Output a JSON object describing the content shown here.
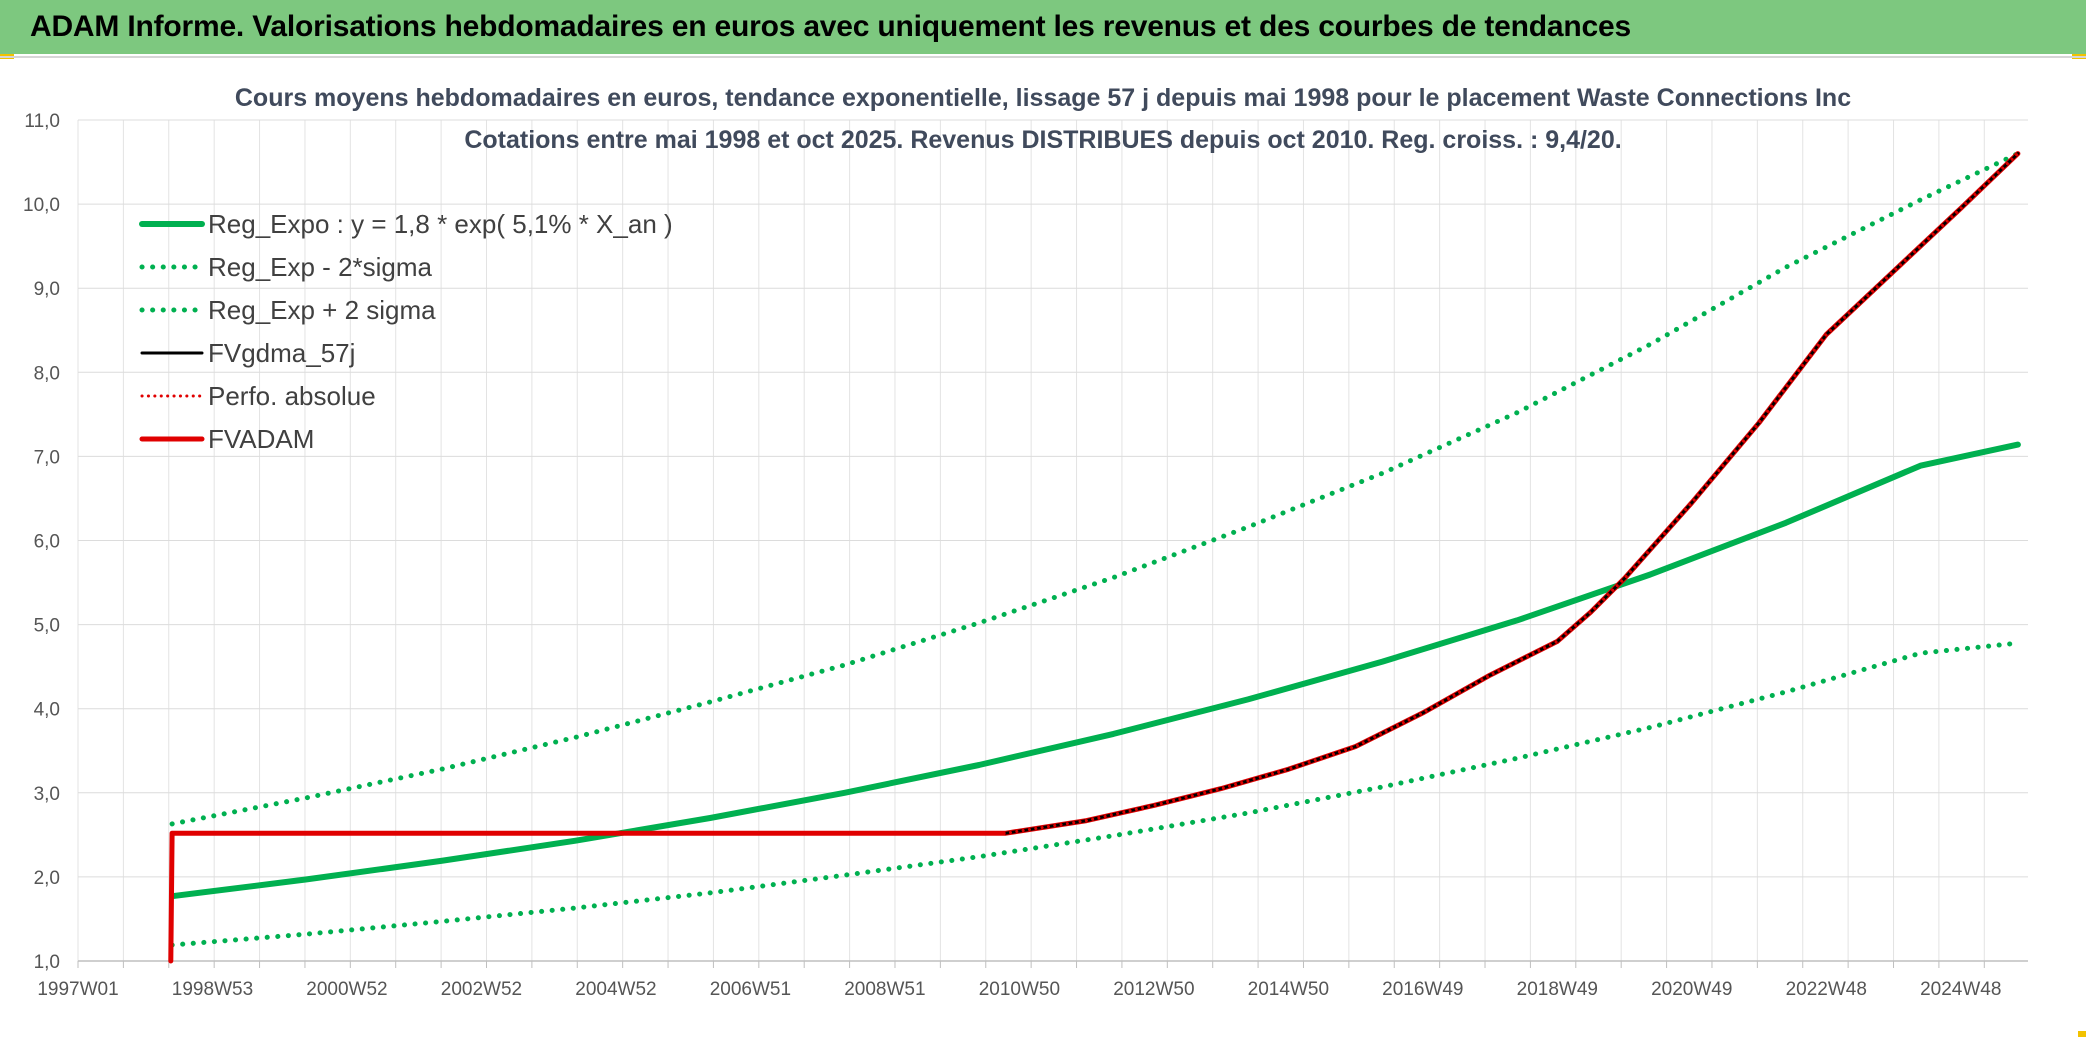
{
  "banner": {
    "title": "ADAM Informe. Valorisations hebdomadaires en euros avec uniquement les revenus et des courbes de tendances"
  },
  "colors": {
    "banner_bg": "#7dc87f",
    "green": "#00b050",
    "red": "#e00000",
    "black": "#000000",
    "gold_accent": "#f2c200"
  },
  "chart_data": {
    "type": "line",
    "title": "Cours moyens hebdomadaires en euros, tendance exponentielle, lissage 57 j depuis mai 1998 pour le placement Waste Connections Inc",
    "subtitle": "Cotations entre mai 1998 et oct 2025. Revenus DISTRIBUES depuis oct 2010. Reg. croiss. : 9,4/20.",
    "xlabel": "",
    "ylabel": "",
    "x_unit": "year",
    "xlim": [
      1997.0,
      2026.0
    ],
    "ylim": [
      1.0,
      11.0
    ],
    "y_ticks": [
      "1,0",
      "2,0",
      "3,0",
      "4,0",
      "5,0",
      "6,0",
      "7,0",
      "8,0",
      "9,0",
      "10,0",
      "11,0"
    ],
    "x_ticks": [
      {
        "x": 1997.0,
        "label": "1997W01"
      },
      {
        "x": 1999.0,
        "label": "1998W53"
      },
      {
        "x": 2001.0,
        "label": "2000W52"
      },
      {
        "x": 2003.0,
        "label": "2002W52"
      },
      {
        "x": 2005.0,
        "label": "2004W52"
      },
      {
        "x": 2007.0,
        "label": "2006W51"
      },
      {
        "x": 2009.0,
        "label": "2008W51"
      },
      {
        "x": 2011.0,
        "label": "2010W50"
      },
      {
        "x": 2013.0,
        "label": "2012W50"
      },
      {
        "x": 2015.0,
        "label": "2014W50"
      },
      {
        "x": 2017.0,
        "label": "2016W49"
      },
      {
        "x": 2019.0,
        "label": "2018W49"
      },
      {
        "x": 2021.0,
        "label": "2020W49"
      },
      {
        "x": 2023.0,
        "label": "2022W48"
      },
      {
        "x": 2025.0,
        "label": "2024W48"
      }
    ],
    "grid": true,
    "legend_position": "top-left",
    "series": [
      {
        "name": "Reg_Expo : y = 1,8 * exp( 5,1% *  X_an )",
        "color": "#00b050",
        "style": "solid",
        "width": 6,
        "x": [
          1998.4,
          2000.4,
          2002.4,
          2004.4,
          2006.4,
          2008.4,
          2010.4,
          2012.4,
          2014.4,
          2016.4,
          2018.4,
          2020.4,
          2022.4,
          2024.4,
          2025.85
        ],
        "y": [
          1.77,
          1.97,
          2.19,
          2.43,
          2.7,
          3.0,
          3.33,
          3.7,
          4.11,
          4.56,
          5.05,
          5.6,
          6.21,
          6.89,
          7.14
        ]
      },
      {
        "name": "Reg_Exp - 2*sigma",
        "color": "#00b050",
        "style": "dotted",
        "width": 5,
        "x": [
          1998.4,
          2000.4,
          2002.4,
          2004.4,
          2006.4,
          2008.4,
          2010.4,
          2012.4,
          2014.4,
          2016.4,
          2018.4,
          2020.4,
          2022.4,
          2024.4,
          2025.85
        ],
        "y": [
          1.19,
          1.32,
          1.47,
          1.63,
          1.81,
          2.02,
          2.24,
          2.49,
          2.76,
          3.07,
          3.41,
          3.78,
          4.2,
          4.66,
          4.78
        ]
      },
      {
        "name": "Reg_Exp + 2 sigma",
        "color": "#00b050",
        "style": "dotted",
        "width": 5,
        "x": [
          1998.4,
          2000.4,
          2002.4,
          2004.4,
          2006.4,
          2008.4,
          2010.4,
          2012.4,
          2014.4,
          2016.4,
          2018.4,
          2020.4,
          2022.4,
          2024.4,
          2025.85
        ],
        "y": [
          2.63,
          2.94,
          3.28,
          3.66,
          4.08,
          4.52,
          5.02,
          5.56,
          6.16,
          6.8,
          7.52,
          8.34,
          9.25,
          10.05,
          10.6
        ]
      },
      {
        "name": "FVgdma_57j",
        "color": "#000000",
        "style": "solid",
        "width": 3,
        "x": [
          2010.8,
          2012.0,
          2013.0,
          2014.0,
          2015.0,
          2016.0,
          2017.0,
          2018.0,
          2019.0,
          2019.5,
          2020.0,
          2021.0,
          2022.0,
          2023.0,
          2024.0,
          2025.0,
          2025.85
        ],
        "y": [
          2.52,
          2.67,
          2.85,
          3.05,
          3.28,
          3.55,
          3.95,
          4.4,
          4.8,
          5.15,
          5.55,
          6.45,
          7.4,
          8.45,
          9.2,
          9.95,
          10.6
        ]
      },
      {
        "name": "Perfo. absolue",
        "color": "#e00000",
        "style": "dotted",
        "width": 3,
        "x": [
          1998.4,
          2010.8,
          2012.0,
          2013.0,
          2014.0,
          2015.0,
          2016.0,
          2017.0,
          2018.0,
          2019.0,
          2019.5,
          2020.0,
          2021.0,
          2022.0,
          2023.0,
          2024.0,
          2025.0,
          2025.85
        ],
        "y": [
          2.52,
          2.52,
          2.67,
          2.85,
          3.05,
          3.28,
          3.55,
          3.95,
          4.4,
          4.8,
          5.15,
          5.55,
          6.45,
          7.4,
          8.45,
          9.2,
          9.95,
          10.6
        ]
      },
      {
        "name": "FVADAM",
        "color": "#e00000",
        "style": "solid",
        "width": 5,
        "x": [
          1998.38,
          1998.4,
          2010.8,
          2012.0,
          2013.0,
          2014.0,
          2015.0,
          2016.0,
          2017.0,
          2018.0,
          2019.0,
          2019.5,
          2020.0,
          2021.0,
          2022.0,
          2023.0,
          2024.0,
          2025.0,
          2025.85
        ],
        "y": [
          1.0,
          2.52,
          2.52,
          2.67,
          2.85,
          3.05,
          3.28,
          3.55,
          3.95,
          4.4,
          4.8,
          5.15,
          5.55,
          6.45,
          7.4,
          8.45,
          9.2,
          9.95,
          10.6
        ]
      }
    ]
  }
}
